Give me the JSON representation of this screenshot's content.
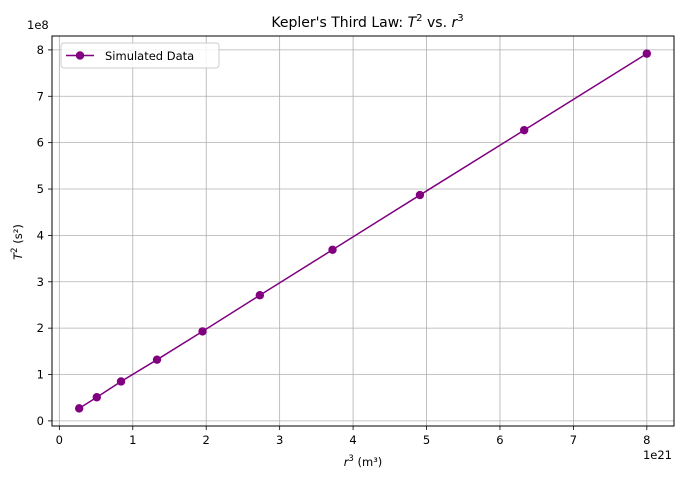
{
  "chart_data": {
    "type": "line",
    "title": {
      "prefix": "Kepler's Third Law: ",
      "sym1": "T",
      "exp1": "2",
      "mid": " vs. ",
      "sym2": "r",
      "exp2": "3"
    },
    "xlabel": {
      "sym": "r",
      "exp": "3",
      "unit": " (m³)"
    },
    "ylabel": {
      "sym": "T",
      "exp": "2",
      "unit": " (s²)"
    },
    "x_offset_label": "1e21",
    "y_offset_label": "1e8",
    "x_scale": 1e+21,
    "y_scale": 100000000.0,
    "xlim": [
      -0.1,
      8.37
    ],
    "ylim": [
      -0.11,
      8.3
    ],
    "x_ticks": [
      0,
      1,
      2,
      3,
      4,
      5,
      6,
      7,
      8
    ],
    "y_ticks": [
      0,
      1,
      2,
      3,
      4,
      5,
      6,
      7,
      8
    ],
    "grid": true,
    "legend_position": "upper-left",
    "series": [
      {
        "name": "Simulated Data",
        "color": "#800080",
        "marker": "circle",
        "x": [
          0.27,
          0.51,
          0.84,
          1.33,
          1.95,
          2.73,
          3.72,
          4.91,
          6.33,
          8.0
        ],
        "y": [
          0.27,
          0.51,
          0.85,
          1.32,
          1.93,
          2.71,
          3.69,
          4.87,
          6.27,
          7.92
        ]
      }
    ]
  }
}
